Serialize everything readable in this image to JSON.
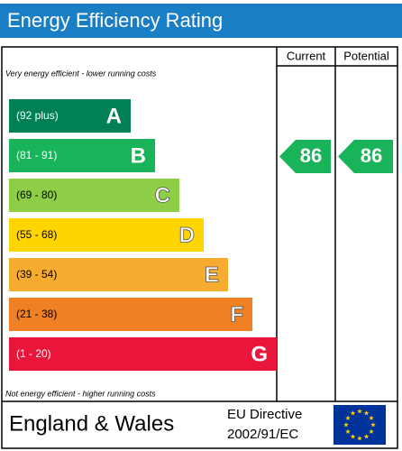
{
  "header": {
    "title": "Energy Efficiency Rating"
  },
  "columns": [
    "Current",
    "Potential"
  ],
  "top_note": "Very energy efficient - lower running costs",
  "bottom_note": "Not energy efficient - higher running costs",
  "bands": [
    {
      "range": "(92 plus)",
      "letter": "A"
    },
    {
      "range": "(81 - 91)",
      "letter": "B"
    },
    {
      "range": "(69 - 80)",
      "letter": "C"
    },
    {
      "range": "(55 - 68)",
      "letter": "D"
    },
    {
      "range": "(39 - 54)",
      "letter": "E"
    },
    {
      "range": "(21 - 38)",
      "letter": "F"
    },
    {
      "range": "(1 - 20)",
      "letter": "G"
    }
  ],
  "ratings": {
    "current": 86,
    "potential": 86
  },
  "footer": {
    "region": "England & Wales",
    "directive_line1": "EU Directive",
    "directive_line2": "2002/91/EC"
  }
}
